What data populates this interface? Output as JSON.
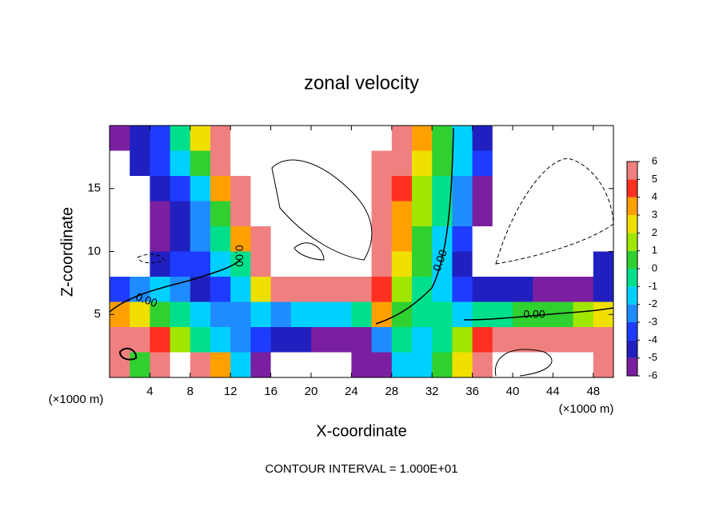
{
  "chart_data": {
    "type": "heatmap",
    "title": "zonal velocity",
    "xlabel": "X-coordinate",
    "ylabel": "Z-coordinate",
    "x_unit_label": "(×1000 m)",
    "y_unit_label": "(×1000 m)",
    "footnote": "CONTOUR INTERVAL = 1.000E+01",
    "contour_labels": [
      "0.00",
      "0.00",
      "0.00",
      "0.00"
    ],
    "xlim": [
      0,
      50
    ],
    "ylim": [
      0,
      20
    ],
    "xticks": [
      4,
      8,
      12,
      16,
      20,
      24,
      28,
      32,
      36,
      40,
      44,
      48
    ],
    "yticks": [
      5,
      10,
      15
    ],
    "colorbar_ticks": [
      6,
      5,
      4,
      3,
      2,
      1,
      0,
      -1,
      -2,
      -3,
      -4,
      -5,
      -6
    ],
    "colors": [
      "#7a1fa0",
      "#2020c0",
      "#1e3cff",
      "#1e8cff",
      "#00d0ff",
      "#00e08c",
      "#30d030",
      "#a0e600",
      "#f0e000",
      "#ffa000",
      "#ff3020",
      "#f08080"
    ],
    "x": [
      1,
      3,
      5,
      7,
      9,
      11,
      13,
      15,
      17,
      19,
      21,
      23,
      25,
      27,
      29,
      31,
      33,
      35,
      37,
      39,
      41,
      43,
      45,
      47,
      49
    ],
    "y": [
      19,
      17,
      15,
      13,
      11,
      9,
      7,
      5,
      3,
      1
    ],
    "values": [
      [
        -6,
        -5,
        -4,
        -1,
        2,
        6,
        10,
        10,
        10,
        10,
        10,
        10,
        10,
        10,
        6,
        3,
        0,
        -2,
        -5,
        -10,
        -10,
        -10,
        -10,
        -10,
        -10
      ],
      [
        -10,
        -5,
        -4,
        -2,
        0,
        5,
        10,
        10,
        10,
        10,
        10,
        10,
        10,
        6,
        5,
        2,
        0,
        -2,
        -4,
        -10,
        -10,
        -10,
        -10,
        -10,
        -10
      ],
      [
        -10,
        -10,
        -5,
        -4,
        -2,
        3,
        6,
        10,
        10,
        10,
        10,
        10,
        10,
        6,
        4,
        1,
        -1,
        -3,
        -6,
        -10,
        -10,
        -10,
        -10,
        -10,
        -10
      ],
      [
        -10,
        -10,
        -6,
        -5,
        -3,
        0,
        5,
        10,
        10,
        10,
        10,
        10,
        10,
        6,
        3,
        1,
        -1,
        -3,
        -6,
        -10,
        -10,
        -10,
        -10,
        -10,
        -10
      ],
      [
        -10,
        -10,
        -6,
        -5,
        -3,
        -1,
        3,
        6,
        10,
        10,
        10,
        10,
        10,
        6,
        3,
        0,
        -2,
        -4,
        -10,
        -10,
        -10,
        -10,
        -10,
        -10,
        -10
      ],
      [
        -10,
        -10,
        -5,
        -4,
        -4,
        -2,
        -1,
        5,
        10,
        10,
        10,
        10,
        10,
        5,
        2,
        0,
        -2,
        -5,
        -10,
        -10,
        -10,
        -10,
        -10,
        -10,
        -5
      ],
      [
        -4,
        -3,
        -2,
        -3,
        -5,
        -4,
        -2,
        2,
        5,
        6,
        6,
        6,
        6,
        4,
        1,
        -1,
        -2,
        -4,
        -5,
        -5,
        -5,
        -6,
        -6,
        -6,
        -5
      ],
      [
        3,
        2,
        0,
        -1,
        -2,
        -3,
        -3,
        -2,
        -3,
        -2,
        -2,
        -2,
        -1,
        3,
        0,
        -1,
        -1,
        -2,
        -1,
        -1,
        0,
        0,
        0,
        1,
        2
      ],
      [
        5,
        6,
        4,
        1,
        -1,
        -2,
        -3,
        -4,
        -5,
        -5,
        -6,
        -6,
        -6,
        -3,
        -1,
        -2,
        -1,
        1,
        4,
        6,
        6,
        6,
        6,
        6,
        5
      ],
      [
        6,
        0,
        6,
        10,
        5,
        3,
        -2,
        -6,
        10,
        10,
        10,
        10,
        -6,
        -6,
        -2,
        -2,
        0,
        2,
        6,
        10,
        10,
        10,
        10,
        10,
        6
      ]
    ]
  }
}
